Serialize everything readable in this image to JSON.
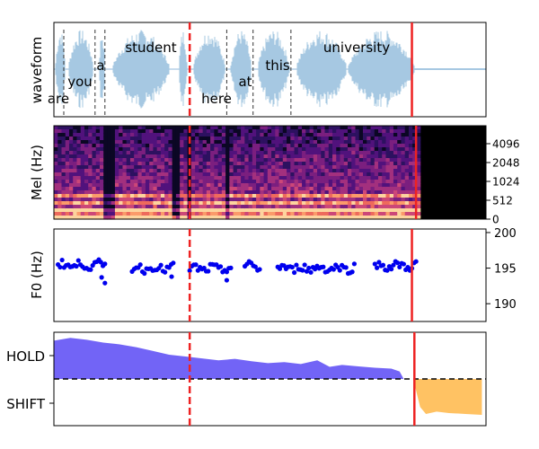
{
  "chart_data": [
    {
      "type": "area",
      "panel": "waveform",
      "ylabel": "waveform",
      "words": [
        {
          "text": "are",
          "t": 0.05
        },
        {
          "text": "you",
          "t": 0.27
        },
        {
          "text": "a",
          "t": 0.52
        },
        {
          "text": "student",
          "t": 1.05
        },
        {
          "text": "here",
          "t": 1.85
        },
        {
          "text": "at",
          "t": 2.27
        },
        {
          "text": "this",
          "t": 2.57
        },
        {
          "text": "university",
          "t": 3.45
        }
      ],
      "word_boundaries": [
        0.12,
        0.5,
        0.62,
        2.1,
        2.42,
        2.88
      ],
      "red_dashed_line_t": 1.65,
      "red_solid_line_t": 4.35,
      "speech_end_t": 4.38,
      "xlim": [
        0,
        5.25
      ]
    },
    {
      "type": "heatmap",
      "panel": "mel-spectrogram",
      "ylabel": "Mel (Hz)",
      "yticks": [
        "0",
        "512",
        "1024",
        "2048",
        "4096"
      ],
      "speech_end_t": 4.45,
      "xlim": [
        0,
        5.25
      ]
    },
    {
      "type": "scatter",
      "panel": "f0",
      "ylabel": "F0 (Hz)",
      "yticks": [
        "190",
        "195",
        "200"
      ],
      "ylim": [
        187.5,
        200.5
      ],
      "segments": [
        {
          "t_start": 0.05,
          "t_end": 0.62,
          "base": 195.4,
          "tail": [
            [
              0.58,
              193.7
            ],
            [
              0.62,
              192.9
            ]
          ]
        },
        {
          "t_start": 0.95,
          "t_end": 1.45,
          "base": 195.0,
          "tail": [
            [
              1.43,
              193.8
            ]
          ]
        },
        {
          "t_start": 1.65,
          "t_end": 2.15,
          "base": 194.9,
          "tail": [
            [
              2.1,
              193.3
            ]
          ]
        },
        {
          "t_start": 2.32,
          "t_end": 2.5,
          "base": 195.2,
          "tail": []
        },
        {
          "t_start": 2.72,
          "t_end": 3.65,
          "base": 195.0,
          "tail": []
        },
        {
          "t_start": 3.9,
          "t_end": 4.4,
          "base": 195.3,
          "tail": []
        }
      ],
      "xlim": [
        0,
        5.25
      ]
    },
    {
      "type": "area",
      "panel": "turn-taking",
      "yticks": [
        "HOLD",
        "SHIFT"
      ],
      "ylim": [
        -1,
        1
      ],
      "hold_series": [
        [
          0.0,
          0.82
        ],
        [
          0.2,
          0.88
        ],
        [
          0.4,
          0.84
        ],
        [
          0.6,
          0.78
        ],
        [
          0.8,
          0.74
        ],
        [
          1.0,
          0.68
        ],
        [
          1.2,
          0.6
        ],
        [
          1.4,
          0.52
        ],
        [
          1.6,
          0.48
        ],
        [
          1.8,
          0.44
        ],
        [
          2.0,
          0.4
        ],
        [
          2.2,
          0.43
        ],
        [
          2.4,
          0.38
        ],
        [
          2.6,
          0.34
        ],
        [
          2.8,
          0.36
        ],
        [
          3.0,
          0.32
        ],
        [
          3.2,
          0.4
        ],
        [
          3.35,
          0.26
        ],
        [
          3.5,
          0.3
        ],
        [
          3.7,
          0.27
        ],
        [
          3.9,
          0.24
        ],
        [
          4.1,
          0.22
        ],
        [
          4.2,
          0.16
        ],
        [
          4.25,
          0.0
        ]
      ],
      "shift_series": [
        [
          4.38,
          -0.1
        ],
        [
          4.45,
          -0.6
        ],
        [
          4.52,
          -0.75
        ],
        [
          4.65,
          -0.7
        ],
        [
          4.8,
          -0.73
        ],
        [
          5.0,
          -0.75
        ],
        [
          5.2,
          -0.77
        ]
      ],
      "hold_color": "#6a5cf5",
      "shift_color": "#ffc263",
      "threshold": 0.0,
      "red_dashed_line_t": 1.65,
      "red_solid_line_t": 4.38,
      "xlim": [
        0,
        5.25
      ]
    }
  ]
}
